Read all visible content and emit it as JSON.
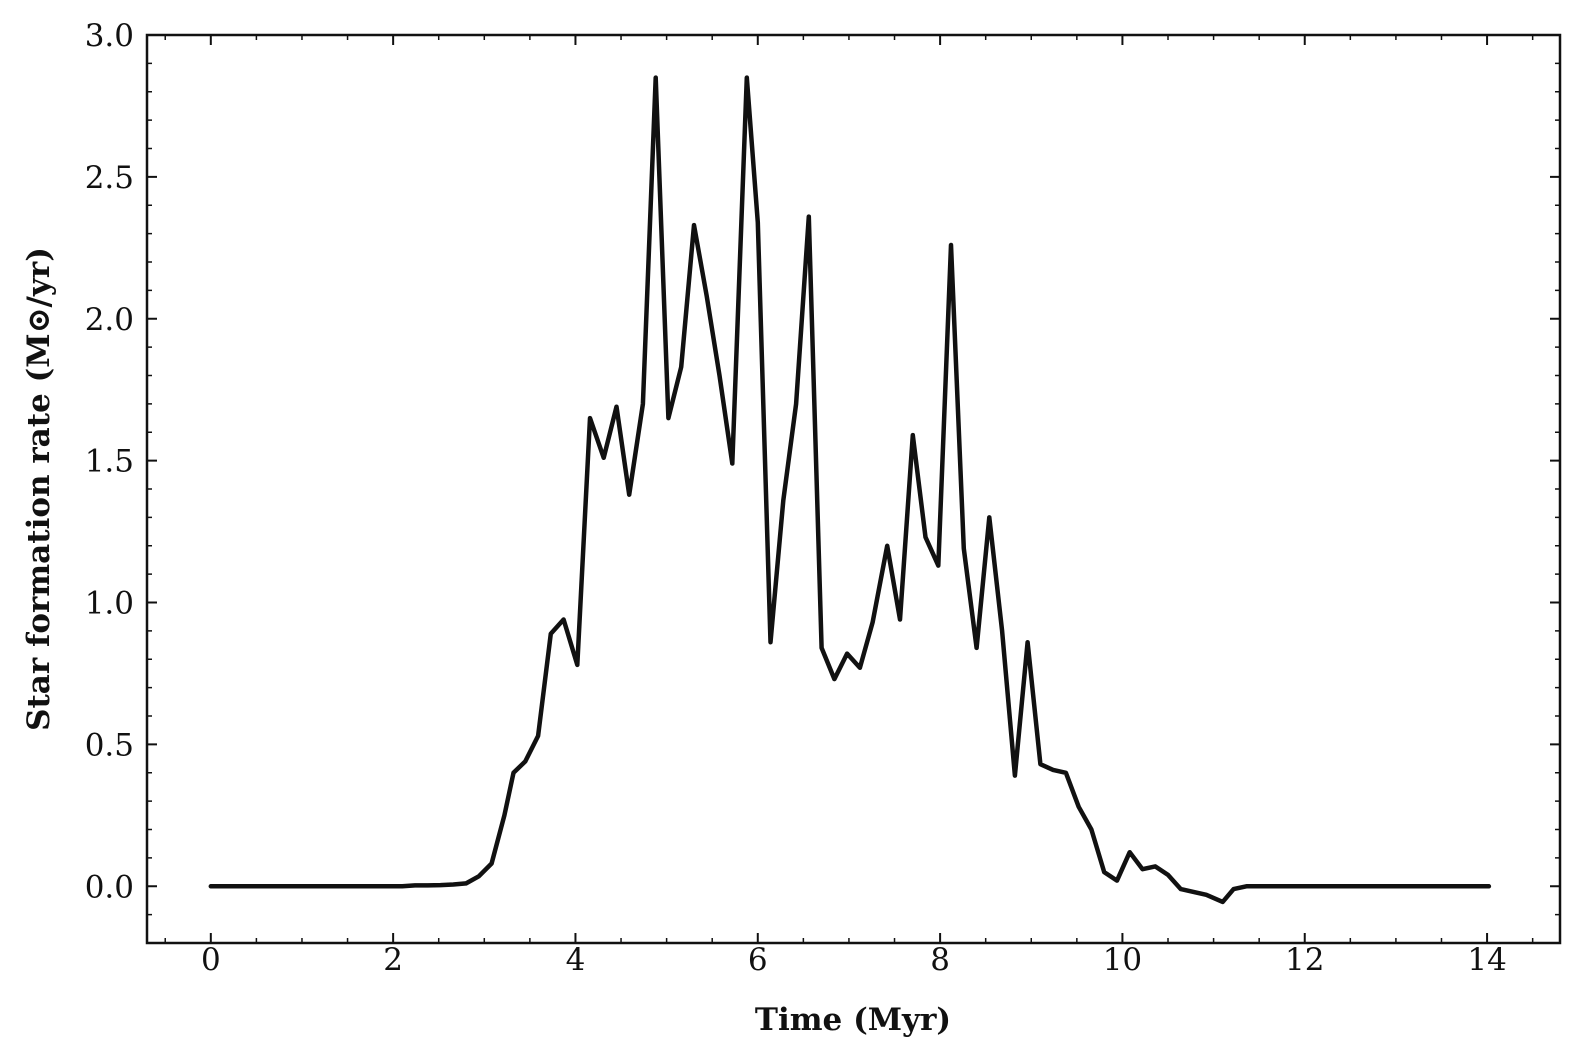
{
  "chart_data": {
    "type": "line",
    "title": "",
    "xlabel": "Time (Myr)",
    "ylabel": "Star formation rate (M⊙/yr)",
    "xlim": [
      -0.7,
      14.8
    ],
    "ylim": [
      -0.2,
      3.0
    ],
    "xticks": [
      0,
      2,
      4,
      6,
      8,
      10,
      12,
      14
    ],
    "xtick_labels": [
      "0",
      "2",
      "4",
      "6",
      "8",
      "10",
      "12",
      "14"
    ],
    "yticks": [
      0.0,
      0.5,
      1.0,
      1.5,
      2.0,
      2.5,
      3.0
    ],
    "ytick_labels": [
      "0.0",
      "0.5",
      "1.0",
      "1.5",
      "2.0",
      "2.5",
      "3.0"
    ],
    "grid": false,
    "legend": "none",
    "line_color": "#111111",
    "series": [
      {
        "x": [
          0,
          0.14,
          0.28,
          0.42,
          0.56,
          0.7,
          0.84,
          0.98,
          1.12,
          1.26,
          1.4,
          1.54,
          1.68,
          1.82,
          1.96,
          2.1,
          2.24,
          2.38,
          2.52,
          2.66,
          2.8,
          2.94,
          3.08,
          3.22,
          3.32,
          3.45,
          3.59,
          3.73,
          3.87,
          4.02,
          4.16,
          4.31,
          4.45,
          4.59,
          4.74,
          4.88,
          5.02,
          5.16,
          5.3,
          5.44,
          5.58,
          5.72,
          5.88,
          6.0,
          6.14,
          6.28,
          6.42,
          6.56,
          6.7,
          6.84,
          6.98,
          7.12,
          7.26,
          7.42,
          7.56,
          7.7,
          7.84,
          7.98,
          8.12,
          8.26,
          8.4,
          8.54,
          8.68,
          8.82,
          8.96,
          9.1,
          9.24,
          9.38,
          9.52,
          9.66,
          9.8,
          9.94,
          10.08,
          10.22,
          10.36,
          10.5,
          10.64,
          10.78,
          10.92,
          11.1,
          11.22,
          11.36,
          11.5,
          11.64,
          11.78,
          11.92,
          12.06,
          12.2,
          12.34,
          12.48,
          12.62,
          12.76,
          12.9,
          13.04,
          13.18,
          13.32,
          13.46,
          13.6,
          13.74,
          13.88,
          14.02
        ],
        "y": [
          0.0,
          0.0,
          0.0,
          0.0,
          0.0,
          0.0,
          0.0,
          0.0,
          0.0,
          0.0,
          0.0,
          0.0,
          0.0,
          0.0,
          0.0,
          0.0,
          0.003,
          0.003,
          0.004,
          0.006,
          0.01,
          0.035,
          0.08,
          0.25,
          0.4,
          0.44,
          0.53,
          0.89,
          0.94,
          0.78,
          1.65,
          1.51,
          1.69,
          1.38,
          1.7,
          2.85,
          1.65,
          1.83,
          2.33,
          2.08,
          1.8,
          1.49,
          2.85,
          2.34,
          0.86,
          1.36,
          1.7,
          2.36,
          0.84,
          0.73,
          0.82,
          0.77,
          0.93,
          1.2,
          0.94,
          1.59,
          1.23,
          1.13,
          2.26,
          1.19,
          0.84,
          1.3,
          0.9,
          0.39,
          0.86,
          0.43,
          0.41,
          0.4,
          0.28,
          0.2,
          0.05,
          0.02,
          0.12,
          0.06,
          0.07,
          0.04,
          -0.01,
          -0.02,
          -0.03,
          -0.055,
          -0.01,
          0.0,
          0.0,
          0.0,
          0.0,
          0.0,
          0.0,
          0.0,
          0.0,
          0.0,
          0.0,
          0.0,
          0.0,
          0.0,
          0.0,
          0.0,
          0.0,
          0.0,
          0.0,
          0.0,
          0.0
        ]
      }
    ]
  }
}
